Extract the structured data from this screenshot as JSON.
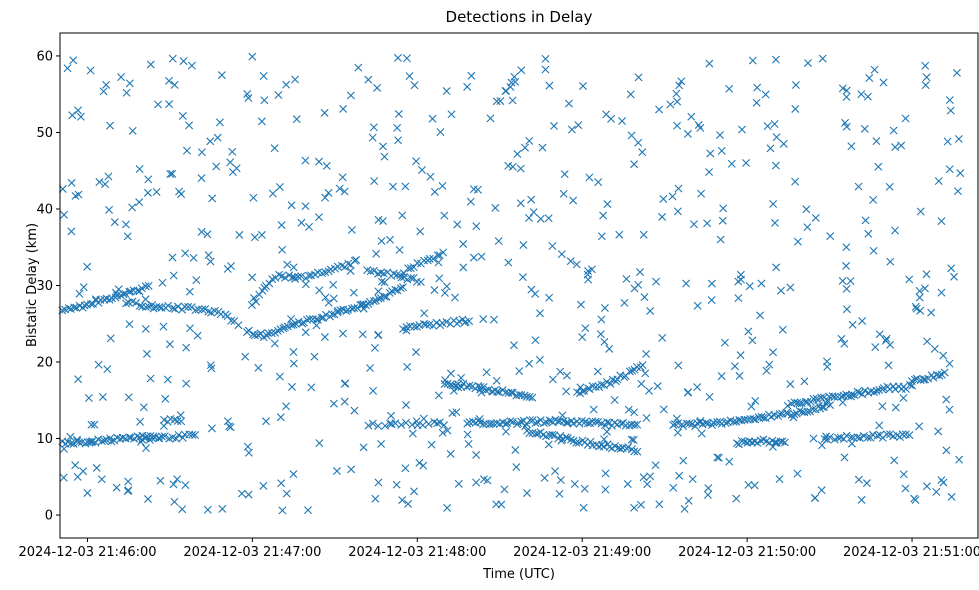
{
  "chart_data": {
    "type": "scatter",
    "title": "Detections in Delay",
    "xlabel": "Time (UTC)",
    "ylabel": "Bistatic Delay (km)",
    "marker": "x",
    "color": "#1f77b4",
    "grid": false,
    "legend": "none",
    "x_unit": "seconds after 2024-12-03 21:46:00 UTC",
    "xlim": [
      -10,
      324
    ],
    "ylim": [
      -3,
      63
    ],
    "xticks": [
      {
        "value": 0,
        "label": "2024-12-03 21:46:00"
      },
      {
        "value": 60,
        "label": "2024-12-03 21:47:00"
      },
      {
        "value": 120,
        "label": "2024-12-03 21:48:00"
      },
      {
        "value": 180,
        "label": "2024-12-03 21:49:00"
      },
      {
        "value": 240,
        "label": "2024-12-03 21:50:00"
      },
      {
        "value": 300,
        "label": "2024-12-03 21:51:00"
      }
    ],
    "yticks": [
      {
        "value": 0,
        "label": "0"
      },
      {
        "value": 10,
        "label": "10"
      },
      {
        "value": 20,
        "label": "20"
      },
      {
        "value": 30,
        "label": "30"
      },
      {
        "value": 40,
        "label": "40"
      },
      {
        "value": 50,
        "label": "50"
      },
      {
        "value": 60,
        "label": "60"
      }
    ],
    "tracks": [
      {
        "x": [
          -9,
          0,
          10,
          20,
          24
        ],
        "y": [
          9.4,
          9.6,
          9.9,
          10.2,
          10.3
        ],
        "step": 1
      },
      {
        "x": [
          20,
          32,
          40
        ],
        "y": [
          10.0,
          10.2,
          10.4
        ],
        "step": 1.2
      },
      {
        "x": [
          28,
          34
        ],
        "y": [
          12.3,
          12.4
        ],
        "step": 1.2
      },
      {
        "x": [
          -9,
          0,
          10,
          22
        ],
        "y": [
          26.6,
          27.5,
          28.5,
          29.8
        ],
        "step": 1
      },
      {
        "x": [
          14,
          25,
          37,
          50,
          56
        ],
        "y": [
          27.8,
          27.2,
          27.0,
          26.3,
          24.5
        ],
        "step": 1.2
      },
      {
        "x": [
          58,
          64,
          75,
          90,
          108,
          115
        ],
        "y": [
          24.0,
          23.4,
          24.8,
          26.3,
          28.5,
          29.8
        ],
        "step": 1
      },
      {
        "x": [
          60,
          68,
          80,
          97
        ],
        "y": [
          27.5,
          31.2,
          31.0,
          33.0
        ],
        "step": 1.2
      },
      {
        "x": [
          102,
          112,
          122
        ],
        "y": [
          32.0,
          31.3,
          30.5
        ],
        "step": 1.2
      },
      {
        "x": [
          114,
          122,
          130
        ],
        "y": [
          31.5,
          33.2,
          34.2
        ],
        "step": 1.2
      },
      {
        "x": [
          102,
          115,
          130
        ],
        "y": [
          11.8,
          11.9,
          12.0
        ],
        "step": 2
      },
      {
        "x": [
          115,
          128,
          140
        ],
        "y": [
          24.4,
          25.0,
          25.5
        ],
        "step": 1.2
      },
      {
        "x": [
          130,
          140,
          162
        ],
        "y": [
          17.2,
          16.8,
          15.5
        ],
        "step": 1
      },
      {
        "x": [
          138,
          150,
          170,
          195,
          200
        ],
        "y": [
          12.2,
          12.0,
          12.3,
          11.8,
          11.6
        ],
        "step": 1
      },
      {
        "x": [
          160,
          180,
          200
        ],
        "y": [
          11.0,
          9.5,
          8.5
        ],
        "step": 1
      },
      {
        "x": [
          178,
          190,
          202
        ],
        "y": [
          16.0,
          17.3,
          19.5
        ],
        "step": 1
      },
      {
        "x": [
          213,
          225,
          240,
          260,
          270
        ],
        "y": [
          11.8,
          11.9,
          12.5,
          13.5,
          14.5
        ],
        "step": 1
      },
      {
        "x": [
          255,
          265,
          290,
          300
        ],
        "y": [
          14.5,
          15.0,
          16.5,
          16.8
        ],
        "step": 1
      },
      {
        "x": [
          300,
          308,
          312
        ],
        "y": [
          17.5,
          18.2,
          18.5
        ],
        "step": 1
      },
      {
        "x": [
          236,
          246,
          254
        ],
        "y": [
          9.4,
          9.7,
          9.6
        ],
        "step": 1
      },
      {
        "x": [
          268,
          280,
          300
        ],
        "y": [
          10.0,
          10.2,
          10.4
        ],
        "step": 1.2
      }
    ],
    "noise": {
      "count": 700,
      "x_range": [
        -9,
        318
      ],
      "y_range": [
        0.5,
        60
      ],
      "seed": 20241203
    }
  }
}
